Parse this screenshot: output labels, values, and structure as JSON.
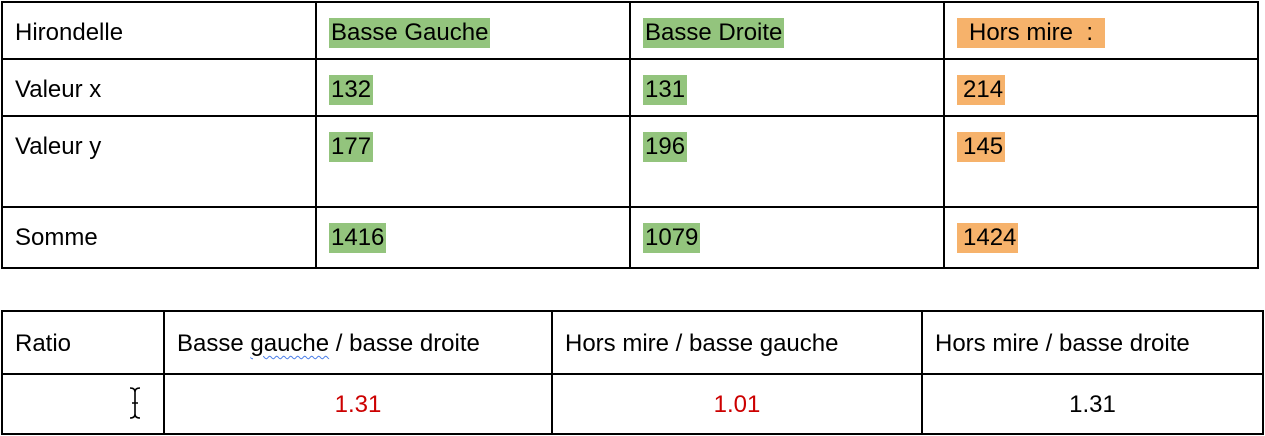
{
  "table1": {
    "headers": [
      "Hirondelle",
      "Basse Gauche",
      "Basse Droite",
      "Hors mire  :"
    ],
    "rows": [
      {
        "label": "Valeur x",
        "values": [
          "132",
          "131",
          "214"
        ]
      },
      {
        "label": "Valeur y",
        "values": [
          "177",
          "196",
          "145"
        ]
      },
      {
        "label": "Somme",
        "values": [
          "1416",
          "1079",
          "1424"
        ]
      }
    ],
    "highlight_colors": {
      "green": "#93c47d",
      "orange": "#f6b26b"
    }
  },
  "table2": {
    "headers": [
      "Ratio",
      "Basse ",
      "gauche",
      " / basse droite",
      "Hors mire / basse gauche",
      "Hors mire / basse droite"
    ],
    "values": [
      "1.31",
      "1.01",
      "1.31"
    ],
    "value_colors": [
      "#cc0000",
      "#cc0000",
      "#000000"
    ]
  },
  "cursor": {
    "icon": "text-cursor-icon"
  }
}
